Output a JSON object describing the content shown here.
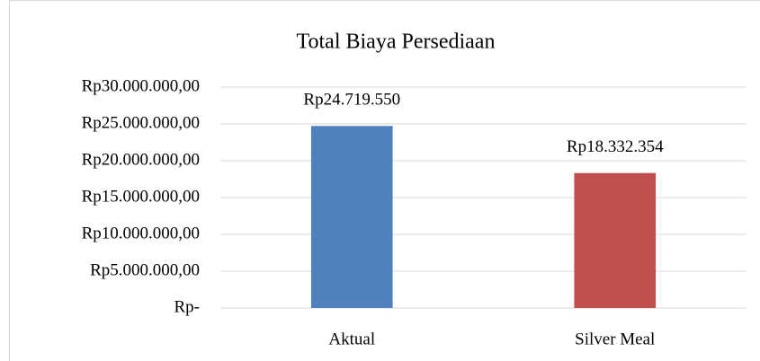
{
  "chart_data": {
    "type": "bar",
    "title": "Total Biaya Persediaan",
    "categories": [
      "Aktual",
      "Silver Meal"
    ],
    "values": [
      24719550,
      18332354
    ],
    "value_labels": [
      "Rp24.719.550",
      "Rp18.332.354"
    ],
    "colors": [
      "#4f81bd",
      "#c0504d"
    ],
    "ylim": [
      0,
      30000000
    ],
    "yticks": [
      {
        "value": 0,
        "label": "Rp-"
      },
      {
        "value": 5000000,
        "label": "Rp5.000.000,00"
      },
      {
        "value": 10000000,
        "label": "Rp10.000.000,00"
      },
      {
        "value": 15000000,
        "label": "Rp15.000.000,00"
      },
      {
        "value": 20000000,
        "label": "Rp20.000.000,00"
      },
      {
        "value": 25000000,
        "label": "Rp25.000.000,00"
      },
      {
        "value": 30000000,
        "label": "Rp30.000.000,00"
      }
    ],
    "grid": true
  }
}
